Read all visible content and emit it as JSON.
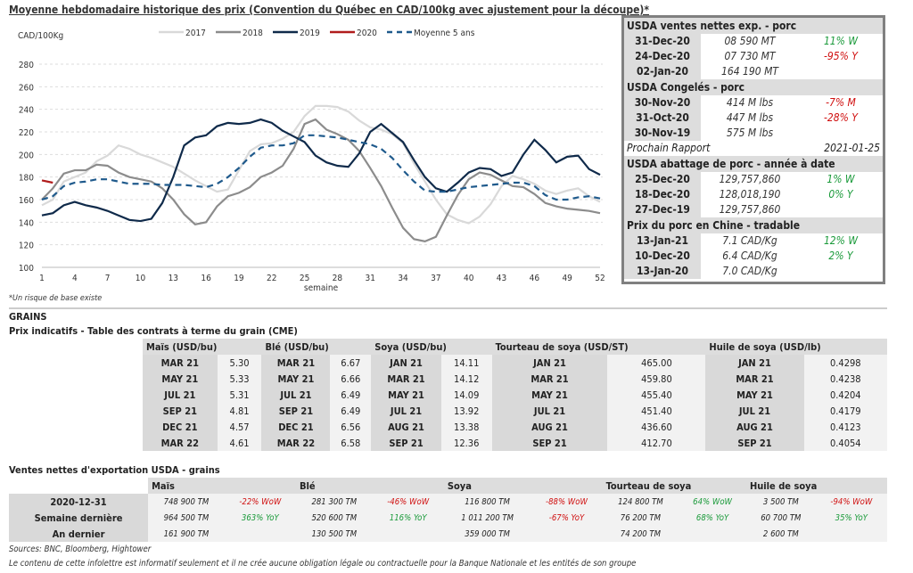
{
  "title": "Moyenne hebdomadaire historique des prix (Convention du Québec en CAD/100kg avec ajustement pour la découpe)*",
  "chart_data": {
    "type": "line",
    "ylabel": "CAD/100Kg",
    "xlabel": "semaine",
    "ylim": [
      100,
      280
    ],
    "yticks": [
      100,
      120,
      140,
      160,
      180,
      200,
      220,
      240,
      260,
      280
    ],
    "xticks": [
      1,
      4,
      7,
      10,
      13,
      16,
      19,
      22,
      25,
      28,
      31,
      34,
      37,
      40,
      43,
      46,
      49,
      52
    ],
    "grid": true,
    "legend": "top",
    "series": [
      {
        "name": "2017",
        "color": "#d9d9d9",
        "dash": false,
        "values": [
          155,
          160,
          176,
          180,
          184,
          194,
          199,
          208,
          205,
          200,
          197,
          193,
          189,
          183,
          177,
          172,
          167,
          169,
          186,
          203,
          209,
          210,
          214,
          220,
          234,
          243,
          243,
          242,
          238,
          230,
          224,
          222,
          218,
          210,
          192,
          176,
          160,
          147,
          142,
          139,
          145,
          156,
          172,
          181,
          178,
          174,
          168,
          165,
          168,
          170,
          163,
          158
        ]
      },
      {
        "name": "2018",
        "color": "#8c8c8c",
        "dash": false,
        "values": [
          160,
          170,
          183,
          186,
          186,
          191,
          190,
          184,
          180,
          178,
          176,
          170,
          160,
          147,
          138,
          140,
          154,
          163,
          166,
          171,
          180,
          184,
          190,
          205,
          227,
          231,
          222,
          218,
          213,
          203,
          188,
          172,
          153,
          135,
          125,
          123,
          127,
          146,
          164,
          178,
          184,
          182,
          177,
          172,
          171,
          165,
          157,
          154,
          152,
          151,
          150,
          148
        ]
      },
      {
        "name": "2019",
        "color": "#0f2a4a",
        "dash": false,
        "values": [
          146,
          148,
          155,
          158,
          155,
          153,
          150,
          146,
          142,
          141,
          143,
          157,
          180,
          208,
          215,
          217,
          225,
          228,
          227,
          228,
          231,
          228,
          221,
          216,
          211,
          199,
          193,
          190,
          189,
          201,
          220,
          227,
          219,
          211,
          195,
          180,
          170,
          167,
          175,
          184,
          188,
          187,
          181,
          184,
          200,
          213,
          204,
          193,
          198,
          199,
          187,
          182
        ]
      },
      {
        "name": "2020",
        "color": "#b01c1c",
        "dash": false,
        "values": [
          177,
          175
        ]
      },
      {
        "name": "Moyenne 5 ans",
        "color": "#1f5a8c",
        "dash": true,
        "values": [
          160,
          163,
          172,
          175,
          176,
          178,
          178,
          176,
          174,
          174,
          174,
          173,
          173,
          173,
          172,
          171,
          174,
          180,
          188,
          198,
          206,
          208,
          208,
          210,
          217,
          217,
          216,
          215,
          213,
          211,
          209,
          205,
          197,
          186,
          176,
          168,
          167,
          167,
          169,
          171,
          172,
          173,
          174,
          175,
          175,
          172,
          164,
          160,
          160,
          162,
          163,
          161
        ]
      }
    ]
  },
  "side": [
    {
      "head": "USDA ventes nettes exp. - porc",
      "rows": [
        [
          "31-Dec-20",
          "08 590  MT",
          "11% W",
          "pos"
        ],
        [
          "24-Dec-20",
          "07 730  MT",
          "-95% Y",
          "neg"
        ],
        [
          "02-Jan-20",
          "164 190  MT",
          "",
          ""
        ]
      ]
    },
    {
      "head": "USDA Congelés - porc",
      "rows": [
        [
          "30-Nov-20",
          "414 M lbs",
          "-7% M",
          "neg"
        ],
        [
          "31-Oct-20",
          "447 M lbs",
          "-28% Y",
          "neg"
        ],
        [
          "30-Nov-19",
          "575 M lbs",
          "",
          ""
        ]
      ],
      "next_label": "Prochain Rapport",
      "next_date": "2021-01-25"
    },
    {
      "head": "USDA abattage de porc - année à date",
      "rows": [
        [
          "25-Dec-20",
          "129,757,860",
          "1% W",
          "pos"
        ],
        [
          "18-Dec-20",
          "128,018,190",
          "0% Y",
          "pos"
        ],
        [
          "27-Dec-19",
          "129,757,860",
          "",
          ""
        ]
      ]
    },
    {
      "head": "Prix du porc en Chine - tradable",
      "rows": [
        [
          "13-Jan-21",
          "7.1 CAD/Kg",
          "12% W",
          "pos"
        ],
        [
          "10-Dec-20",
          "6.4 CAD/Kg",
          "2% Y",
          "pos"
        ],
        [
          "13-Jan-20",
          "7.0 CAD/Kg",
          "",
          ""
        ]
      ]
    }
  ],
  "note": "*Un risque de base existe",
  "grains_label": "GRAINS",
  "futures_title": "Prix indicatifs - Table des contrats à terme du grain (CME)",
  "futures": [
    {
      "name": "Maïs (USD/bu)",
      "rows": [
        [
          "MAR 21",
          "5.30"
        ],
        [
          "MAY 21",
          "5.33"
        ],
        [
          "JUL 21",
          "5.31"
        ],
        [
          "SEP 21",
          "4.81"
        ],
        [
          "DEC 21",
          "4.57"
        ],
        [
          "MAR 22",
          "4.61"
        ]
      ]
    },
    {
      "name": "Blé (USD/bu)",
      "rows": [
        [
          "MAR 21",
          "6.67"
        ],
        [
          "MAY 21",
          "6.66"
        ],
        [
          "JUL 21",
          "6.49"
        ],
        [
          "SEP 21",
          "6.49"
        ],
        [
          "DEC 21",
          "6.56"
        ],
        [
          "MAR 22",
          "6.58"
        ]
      ]
    },
    {
      "name": "Soya (USD/bu)",
      "rows": [
        [
          "JAN 21",
          "14.11"
        ],
        [
          "MAR 21",
          "14.12"
        ],
        [
          "MAY 21",
          "14.09"
        ],
        [
          "JUL 21",
          "13.92"
        ],
        [
          "AUG 21",
          "13.38"
        ],
        [
          "SEP 21",
          "12.36"
        ]
      ]
    },
    {
      "name": "Tourteau de soya (USD/ST)",
      "rows": [
        [
          "JAN 21",
          "465.00"
        ],
        [
          "MAR 21",
          "459.80"
        ],
        [
          "MAY 21",
          "455.40"
        ],
        [
          "JUL 21",
          "451.40"
        ],
        [
          "AUG 21",
          "436.60"
        ],
        [
          "SEP 21",
          "412.70"
        ]
      ]
    },
    {
      "name": "Huile de soya (USD/lb)",
      "rows": [
        [
          "JAN 21",
          "0.4298"
        ],
        [
          "MAR 21",
          "0.4238"
        ],
        [
          "MAY 21",
          "0.4204"
        ],
        [
          "JUL 21",
          "0.4179"
        ],
        [
          "AUG 21",
          "0.4123"
        ],
        [
          "SEP 21",
          "0.4054"
        ]
      ]
    }
  ],
  "exports_title": "Ventes nettes d'exportation USDA - grains",
  "exports": {
    "row_labels": [
      "2020-12-31",
      "Semaine dernière",
      "An dernier"
    ],
    "cols": [
      {
        "name": "Maïs",
        "vals": [
          "748 900 TM",
          "964 500 TM",
          "161 900 TM"
        ],
        "chg": [
          [
            "-22% WoW",
            "neg"
          ],
          [
            "363% YoY",
            "pos"
          ],
          [
            "",
            ""
          ]
        ]
      },
      {
        "name": "Blé",
        "vals": [
          "281 300 TM",
          "520 600 TM",
          "130 500 TM"
        ],
        "chg": [
          [
            "-46% WoW",
            "neg"
          ],
          [
            "116% YoY",
            "pos"
          ],
          [
            "",
            ""
          ]
        ]
      },
      {
        "name": "Soya",
        "vals": [
          "116 800 TM",
          "1 011 200 TM",
          "359 000 TM"
        ],
        "chg": [
          [
            "-88% WoW",
            "neg"
          ],
          [
            "-67% YoY",
            "neg"
          ],
          [
            "",
            ""
          ]
        ]
      },
      {
        "name": "Tourteau de soya",
        "vals": [
          "124 800 TM",
          "76 200 TM",
          "74 200 TM"
        ],
        "chg": [
          [
            "64% WoW",
            "pos"
          ],
          [
            "68% YoY",
            "pos"
          ],
          [
            "",
            ""
          ]
        ]
      },
      {
        "name": "Huile de soya",
        "vals": [
          "3 500 TM",
          "60 700 TM",
          "2 600 TM"
        ],
        "chg": [
          [
            "-94% WoW",
            "neg"
          ],
          [
            "35% YoY",
            "pos"
          ],
          [
            "",
            ""
          ]
        ]
      }
    ]
  },
  "sources": "Sources: BNC, Bloomberg, Hightower",
  "disclaimer": "Le contenu de cette infolettre est informatif seulement et il ne crée aucune obligation légale ou contractuelle pour la Banque Nationale et les entités de son groupe"
}
